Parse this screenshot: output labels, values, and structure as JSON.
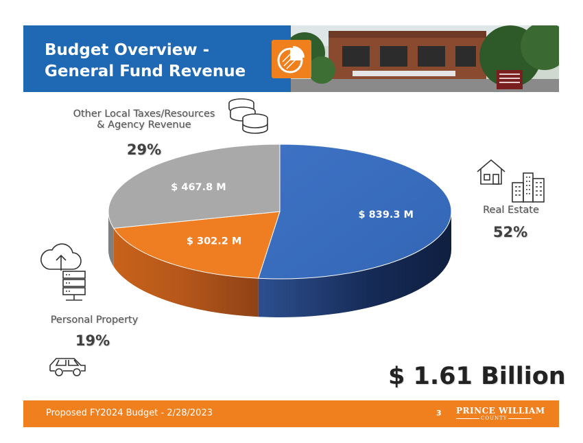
{
  "header": {
    "title_line1": "Budget Overview -",
    "title_line2": "General Fund Revenue"
  },
  "total": "$ 1.61 Billion",
  "footer": {
    "text": "Proposed FY2024 Budget - 2/28/2023",
    "page_number": "3",
    "logo_top": "Prince William",
    "logo_bottom": "County"
  },
  "colors": {
    "header_blue": "#1f68b4",
    "footer_orange": "#f07f1e",
    "real_estate": "#3a6cbf",
    "personal_property": "#ef7d22",
    "other": "#a9a9a9"
  },
  "icons": {
    "coins": "coins-icon",
    "house": "house-icon",
    "buildings": "buildings-icon",
    "cloud": "cloud-upload-icon",
    "server": "server-icon",
    "car": "car-icon",
    "pie": "pie-chart-icon"
  },
  "chart_data": {
    "type": "pie",
    "title": "",
    "start_angle_deg": 0,
    "direction": "clockwise",
    "slices": [
      {
        "category": "Real Estate",
        "percent": 52,
        "value_label": "$ 839.3 M",
        "color": "#3a6cbf"
      },
      {
        "category": "Personal Property",
        "percent": 19,
        "value_label": "$ 302.2 M",
        "color": "#ef7d22"
      },
      {
        "category": "Other Local Taxes/Resources & Agency Revenue",
        "percent": 29,
        "value_label": "$ 467.8 M",
        "color": "#a9a9a9"
      }
    ],
    "category_lines": {
      "other_line1": "Other Local Taxes/Resources",
      "other_line2": "& Agency Revenue"
    },
    "percent_labels": [
      "52%",
      "19%",
      "29%"
    ]
  }
}
